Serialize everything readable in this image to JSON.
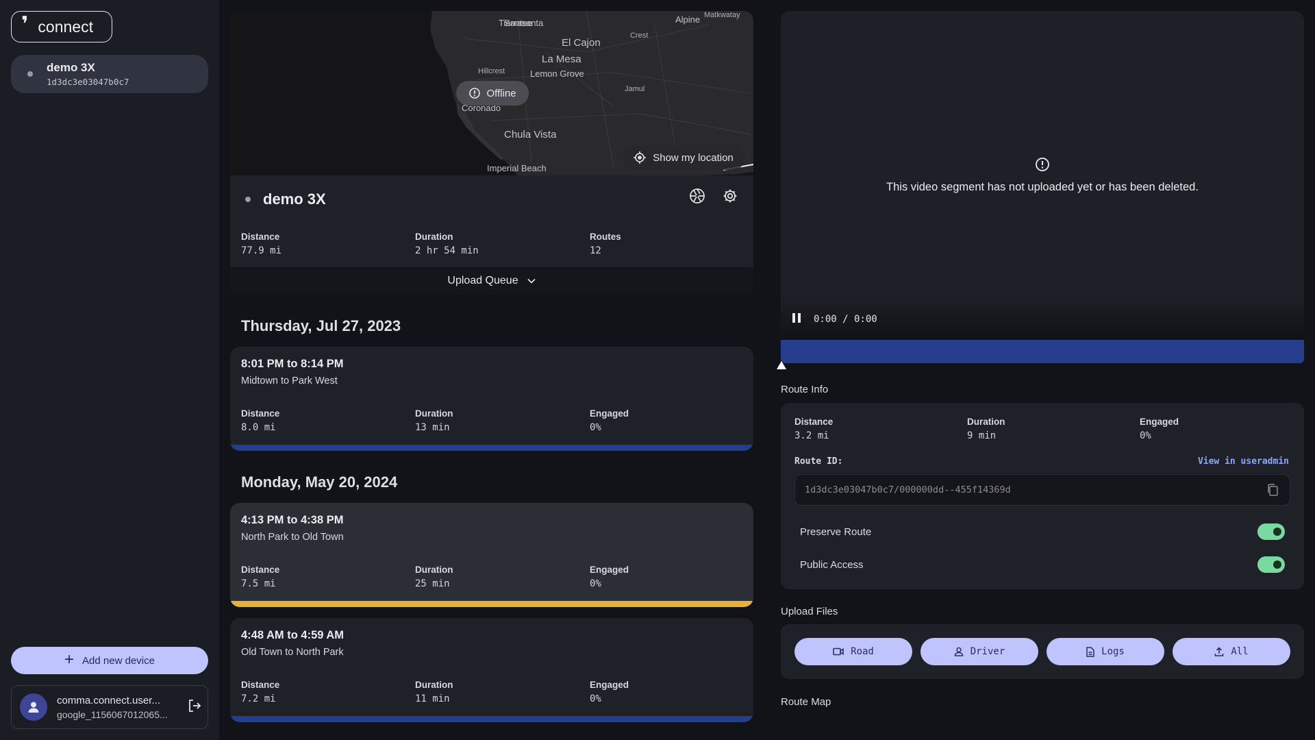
{
  "sidebar": {
    "logo_text": "connect",
    "device": {
      "name": "demo 3X",
      "id": "1d3dc3e03047b0c7"
    },
    "add_device_label": "Add new device",
    "account": {
      "name": "comma.connect.user...",
      "sub": "google_1156067012065..."
    }
  },
  "map": {
    "offline_label": "Offline",
    "show_location_label": "Show my location",
    "places": {
      "santee": "Santee",
      "alpine": "Alpine",
      "tierrasanta": "Tierrasanta",
      "el_cajon": "El Cajon",
      "crest": "Crest",
      "la_mesa": "La Mesa",
      "hillcrest": "Hillcrest",
      "lemon_grove": "Lemon Grove",
      "coronado": "Coronado",
      "jamul": "Jamul",
      "chula_vista": "Chula Vista",
      "imperial_beach": "Imperial Beach",
      "matkwatay": "Matkwatay"
    }
  },
  "device_card": {
    "name": "demo 3X",
    "stats": {
      "distance_label": "Distance",
      "distance": "77.9 mi",
      "duration_label": "Duration",
      "duration": "2 hr 54 min",
      "routes_label": "Routes",
      "routes": "12"
    },
    "upload_queue_label": "Upload Queue"
  },
  "days": [
    {
      "title": "Thursday, Jul 27, 2023"
    },
    {
      "title": "Monday, May 20, 2024"
    }
  ],
  "routes": [
    {
      "time": "8:01 PM to 8:14 PM",
      "place": "Midtown to Park West",
      "distance_label": "Distance",
      "distance": "8.0 mi",
      "duration_label": "Duration",
      "duration": "13 min",
      "engaged_label": "Engaged",
      "engaged": "0%",
      "bar_color": "#263c8c"
    },
    {
      "time": "4:13 PM to 4:38 PM",
      "place": "North Park to Old Town",
      "distance_label": "Distance",
      "distance": "7.5 mi",
      "duration_label": "Duration",
      "duration": "25 min",
      "engaged_label": "Engaged",
      "engaged": "0%",
      "bar_color": "#e0b43a"
    },
    {
      "time": "4:48 AM to 4:59 AM",
      "place": "Old Town to North Park",
      "distance_label": "Distance",
      "distance": "7.2 mi",
      "duration_label": "Duration",
      "duration": "11 min",
      "engaged_label": "Engaged",
      "engaged": "0%",
      "bar_color": "#263c8c"
    }
  ],
  "video": {
    "message": "This video segment has not uploaded yet or has been deleted.",
    "time": "0:00 / 0:00"
  },
  "route_info": {
    "title": "Route Info",
    "distance_label": "Distance",
    "distance": "3.2 mi",
    "duration_label": "Duration",
    "duration": "9 min",
    "engaged_label": "Engaged",
    "engaged": "0%",
    "route_id_label": "Route ID:",
    "useradmin_label": "View in useradmin",
    "route_id": "1d3dc3e03047b0c7/000000dd--455f14369d",
    "preserve_label": "Preserve Route",
    "preserve_on": true,
    "public_label": "Public Access",
    "public_on": true
  },
  "upload_files": {
    "title": "Upload Files",
    "road": "Road",
    "driver": "Driver",
    "logs": "Logs",
    "all": "All"
  },
  "route_map_title": "Route Map",
  "colors": {
    "accent": "#bfc4ff",
    "timeline": "#263c8c",
    "toggle_on": "#79d9a1",
    "engaged_bar": "#e0b43a"
  }
}
